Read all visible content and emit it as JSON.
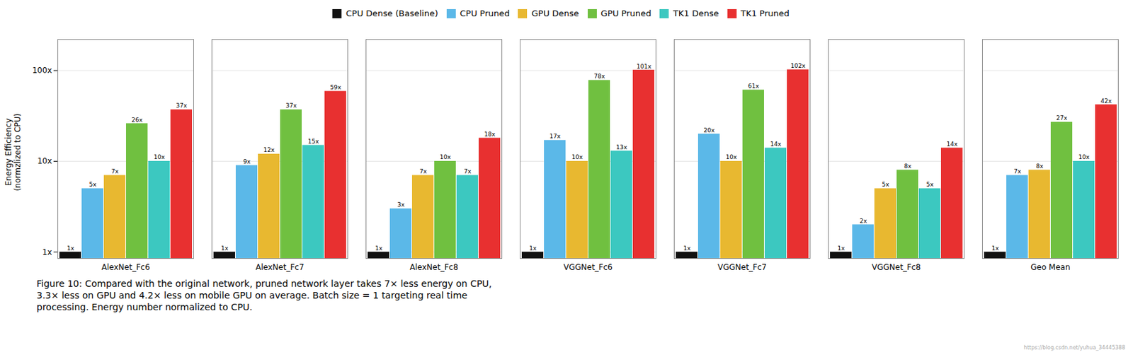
{
  "chart_data": {
    "type": "bar",
    "categories": [
      "AlexNet_Fc6",
      "AlexNet_Fc7",
      "AlexNet_Fc8",
      "VGGNet_Fc6",
      "VGGNet_Fc7",
      "VGGNet_Fc8",
      "Geo Mean"
    ],
    "series": [
      {
        "name": "CPU Dense (Baseline)",
        "color": "#111111",
        "values": [
          1,
          1,
          1,
          1,
          1,
          1,
          1
        ],
        "value_labels": [
          "1x",
          "1x",
          "1x",
          "1x",
          "1x",
          "1x",
          "1x"
        ]
      },
      {
        "name": "CPU Pruned",
        "color": "#5bb8e8",
        "values": [
          5,
          9,
          3,
          17,
          20,
          2,
          7
        ],
        "value_labels": [
          "5x",
          "9x",
          "3x",
          "17x",
          "20x",
          "2x",
          "7x"
        ]
      },
      {
        "name": "GPU Dense",
        "color": "#e8b830",
        "values": [
          7,
          12,
          7,
          10,
          10,
          5,
          8
        ],
        "value_labels": [
          "7x",
          "12x",
          "7x",
          "10x",
          "10x",
          "5x",
          "8x"
        ]
      },
      {
        "name": "GPU Pruned",
        "color": "#70c040",
        "values": [
          26,
          37,
          10,
          78,
          61,
          8,
          27
        ],
        "value_labels": [
          "26x",
          "37x",
          "10x",
          "78x",
          "61x",
          "8x",
          "27x"
        ]
      },
      {
        "name": "TK1 Dense",
        "color": "#3cc8c0",
        "values": [
          10,
          15,
          7,
          13,
          14,
          5,
          10
        ],
        "value_labels": [
          "10x",
          "15x",
          "7x",
          "13x",
          "14x",
          "5x",
          "10x"
        ]
      },
      {
        "name": "TK1 Pruned",
        "color": "#e83030",
        "values": [
          37,
          59,
          18,
          101,
          102,
          14,
          42
        ],
        "value_labels": [
          "37x",
          "59x",
          "18x",
          "101x",
          "102x",
          "14x",
          "42x"
        ]
      }
    ],
    "ylabel": "Energy Efficiency\n(normzlized to CPU)",
    "ylim": [
      0.85,
      220
    ],
    "yticks": [
      {
        "value": 1,
        "label": "1x"
      },
      {
        "value": 10,
        "label": "10x"
      },
      {
        "value": 100,
        "label": "100x"
      }
    ],
    "log": "y",
    "grid": true,
    "legend": "top",
    "data_labels": true,
    "caption": [
      "Figure 10: Compared with the original network, pruned network layer takes 7× less energy on CPU,",
      "3.3× less on GPU and 4.2× less on mobile GPU on average.  Batch size = 1 targeting real time",
      "processing. Energy number normalized to CPU."
    ],
    "annotations": [
      "https://blog.csdn.net/yuhua_34445388"
    ]
  }
}
